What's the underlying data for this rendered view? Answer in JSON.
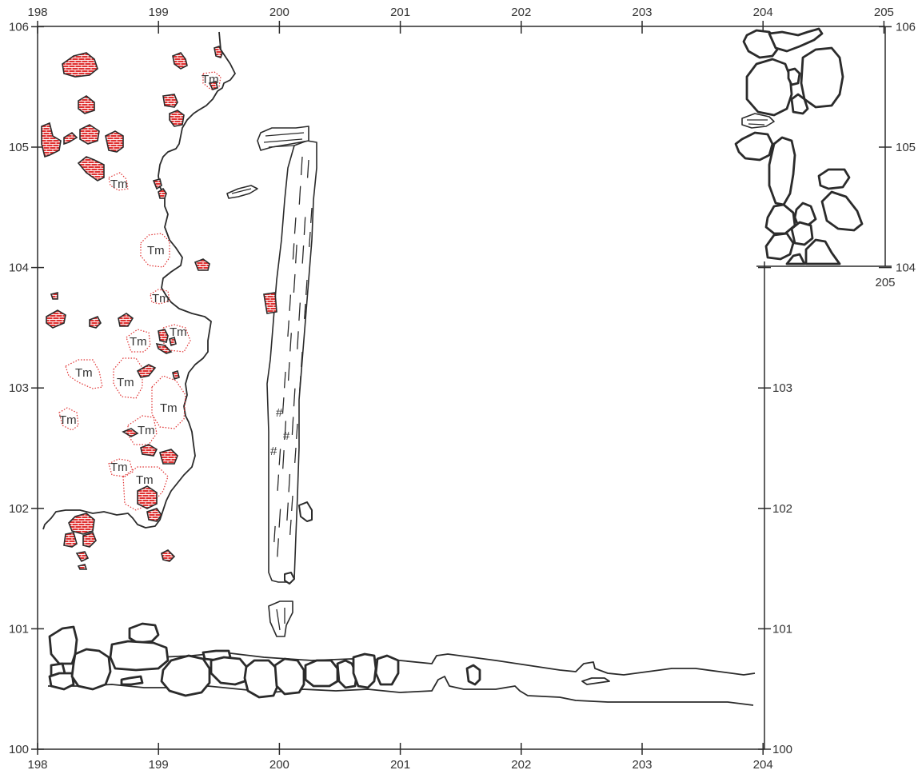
{
  "title": "",
  "x_axis": {
    "top_ticks": [
      "198",
      "199",
      "200",
      "201",
      "202",
      "203",
      "204",
      "205"
    ],
    "bottom_ticks": [
      "198",
      "199",
      "200",
      "201",
      "202",
      "203",
      "204"
    ],
    "inner_ticks": [
      "205"
    ]
  },
  "y_axis": {
    "left_ticks": [
      "100",
      "101",
      "102",
      "103",
      "104",
      "105",
      "106"
    ],
    "right_lower_ticks": [
      "100",
      "101",
      "102",
      "103",
      "104"
    ],
    "right_upper_ticks": [
      "104",
      "105",
      "106"
    ]
  },
  "annotations": {
    "tm_label": "Tm",
    "hash_mark": "#"
  },
  "colors": {
    "line": "#2b2b2b",
    "brick_fill": "#e03030",
    "tm_outline": "#e03030",
    "background": "#ffffff"
  },
  "legend_symbols": [
    "brick-fragment",
    "tm-zone",
    "stone",
    "wooden-beam"
  ]
}
